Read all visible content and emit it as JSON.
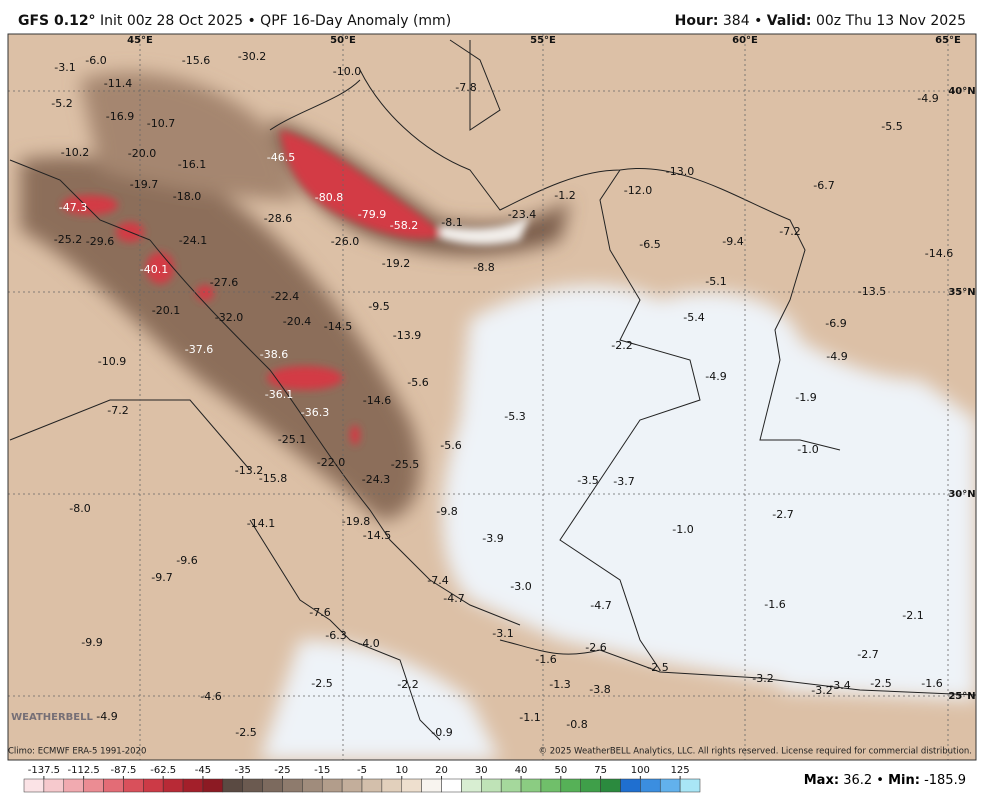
{
  "header": {
    "model": "GFS 0.12°",
    "title_rest": "Init 00z 28 Oct 2025 • QPF 16-Day Anomaly (mm)",
    "hour_key": "Hour:",
    "hour_value": "384 •",
    "valid_key": "Valid:",
    "valid_value": "00z Thu 13 Nov 2025"
  },
  "map": {
    "lon_labels": [
      "45°E",
      "50°E",
      "55°E",
      "60°E",
      "65°E"
    ],
    "lat_labels": [
      "40°N",
      "35°N",
      "30°N",
      "25°N"
    ],
    "labels": [
      "-3.1",
      "-6.0",
      "-15.6",
      "-30.2",
      "-10.0",
      "-11.4",
      "-7.8",
      "-5.2",
      "-16.9",
      "-10.7",
      "-4.9",
      "-5.5",
      "-10.2",
      "-20.0",
      "-46.5",
      "-16.1",
      "-13.0",
      "-6.7",
      "-19.7",
      "-18.0",
      "-12.0",
      "-1.2",
      "-80.8",
      "-47.3",
      "-79.9",
      "-28.6",
      "-58.2",
      "-8.1",
      "-23.4",
      "-25.2",
      "-29.6",
      "-24.1",
      "-26.0",
      "-6.5",
      "-9.4",
      "-7.2",
      "-14.6",
      "-19.2",
      "-8.8",
      "-40.1",
      "-27.6",
      "-5.1",
      "-13.5",
      "-22.4",
      "-9.5",
      "-20.1",
      "-32.0",
      "-20.4",
      "-14.5",
      "-5.4",
      "-6.9",
      "-13.9",
      "-2.2",
      "-37.6",
      "-38.6",
      "-4.9",
      "-10.9",
      "-5.6",
      "-4.9",
      "-36.1",
      "-14.6",
      "-1.9",
      "-7.2",
      "-36.3",
      "-5.3",
      "-25.1",
      "-5.6",
      "-1.0",
      "-22.0",
      "-25.5",
      "-13.2",
      "-15.8",
      "-24.3",
      "-3.5",
      "-3.7",
      "-8.0",
      "-9.8",
      "-2.7",
      "-14.1",
      "-19.8",
      "-14.5",
      "-1.0",
      "-3.9",
      "-9.6",
      "-9.7",
      "-7.4",
      "-3.0",
      "-4.7",
      "-4.7",
      "-1.6",
      "-2.1",
      "-7.6",
      "-9.9",
      "-3.1",
      "-6.3",
      "-4.0",
      "-2.6",
      "-1.6",
      "-2.7",
      "-2.5",
      "-3.2",
      "-3.4",
      "-2.5",
      "-1.6",
      "-3.2",
      "-2.5",
      "-2.2",
      "-1.3",
      "-3.8",
      "-4.6",
      "-4.9",
      "-1.1",
      "-0.8",
      "-2.5",
      "-0.9"
    ],
    "logo": "WEATHERBELL"
  },
  "footer": {
    "climo": "Climo: ECMWF ERA-5 1991-2020",
    "copyright": "© 2025 WeatherBELL Analytics, LLC. All rights reserved. License required for commercial distribution.",
    "max_key": "Max:",
    "max_value": "36.2 •",
    "min_key": "Min:",
    "min_value": "-185.9"
  },
  "colorbar": {
    "ticks": [
      -137.5,
      -112.5,
      -87.5,
      -62.5,
      -45,
      -35,
      -25,
      -15,
      -5,
      10,
      20,
      30,
      40,
      50,
      75,
      100,
      125
    ],
    "colors": [
      "#fbe3e6",
      "#f6c9cd",
      "#f1aab0",
      "#eb8c93",
      "#e36c76",
      "#d9505b",
      "#cc3a46",
      "#b82a36",
      "#a31f2a",
      "#8c1a23",
      "#5a4a42",
      "#6b5a50",
      "#7c6a5e",
      "#8e7b6d",
      "#a08c7c",
      "#b29d8b",
      "#c3ae9b",
      "#d3bfab",
      "#e2d0bc",
      "#eedfce",
      "#f8f4ef",
      "#ffffff",
      "#d8eed2",
      "#bfe3b7",
      "#a5d89c",
      "#8bcc82",
      "#70bf6a",
      "#56b157",
      "#3f9f49",
      "#2b8a3e",
      "#1f6fd0",
      "#3b8ee0",
      "#62b1ec",
      "#a9e6f6"
    ]
  }
}
